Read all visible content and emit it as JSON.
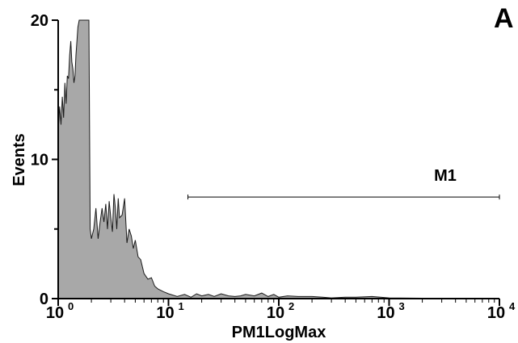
{
  "chart_data": {
    "type": "area",
    "panel_label": "A",
    "xlabel": "PM1LogMax",
    "ylabel": "Events",
    "xscale": "log",
    "xlim": [
      1,
      10000
    ],
    "ylim": [
      0,
      20
    ],
    "y_ticks": [
      0,
      10,
      20
    ],
    "y_tick_labels": [
      "0",
      "10",
      "20"
    ],
    "x_ticks": [
      {
        "base": "10",
        "exp": "0",
        "value": 1
      },
      {
        "base": "10",
        "exp": "1",
        "value": 10
      },
      {
        "base": "10",
        "exp": "2",
        "value": 100
      },
      {
        "base": "10",
        "exp": "3",
        "value": 1000
      },
      {
        "base": "10",
        "exp": "4",
        "value": 10000
      }
    ],
    "fill_color": "#a8a8a8",
    "line_color": "#1a1a1a",
    "marker": {
      "label": "M1",
      "x_start": 15,
      "x_end": 10000,
      "y": 7.3
    },
    "series": [
      {
        "x": [
          1.0,
          1.03,
          1.06,
          1.09,
          1.12,
          1.15,
          1.18,
          1.21,
          1.24,
          1.27,
          1.3,
          1.33,
          1.36,
          1.39,
          1.42,
          1.45,
          1.48,
          1.51,
          1.55,
          1.58,
          1.62,
          1.66,
          1.7,
          1.74,
          1.78,
          1.82,
          1.86,
          1.9,
          1.95,
          2.0,
          2.1,
          2.2,
          2.3,
          2.4,
          2.5,
          2.6,
          2.7,
          2.8,
          2.9,
          3.0,
          3.1,
          3.2,
          3.3,
          3.4,
          3.5,
          3.6,
          3.8,
          4.0,
          4.2,
          4.4,
          4.6,
          4.8,
          5.0,
          5.3,
          5.6,
          6.0,
          6.5,
          7.0,
          7.5,
          8.0,
          9.0,
          10,
          12,
          14,
          16,
          18,
          20,
          23,
          26,
          30,
          35,
          40,
          45,
          50,
          60,
          70,
          80,
          90,
          100,
          120,
          150,
          200,
          250,
          300,
          400,
          500,
          700,
          1000,
          2000,
          5000,
          10000
        ],
        "y": [
          12.0,
          13.8,
          12.5,
          14.5,
          13.0,
          15.5,
          14.0,
          16.0,
          15.8,
          17.5,
          18.5,
          17.0,
          16.5,
          15.5,
          16.0,
          17.5,
          18.5,
          19.5,
          20.0,
          20.0,
          20.0,
          20.0,
          20.0,
          20.0,
          20.0,
          20.0,
          20.0,
          20.0,
          5.0,
          4.3,
          5.0,
          6.5,
          4.3,
          5.5,
          6.5,
          5.5,
          6.8,
          5.0,
          7.0,
          5.8,
          4.8,
          7.5,
          6.5,
          5.0,
          7.2,
          5.8,
          6.0,
          7.2,
          4.0,
          5.0,
          4.5,
          3.6,
          4.2,
          3.0,
          2.8,
          1.8,
          1.4,
          1.5,
          0.9,
          0.7,
          0.5,
          0.35,
          0.15,
          0.3,
          0.1,
          0.35,
          0.2,
          0.3,
          0.15,
          0.35,
          0.2,
          0.15,
          0.2,
          0.3,
          0.2,
          0.4,
          0.15,
          0.3,
          0.1,
          0.2,
          0.15,
          0.15,
          0.1,
          0.05,
          0.1,
          0.1,
          0.15,
          0.05,
          0.03,
          0.02,
          0.0
        ]
      }
    ]
  }
}
